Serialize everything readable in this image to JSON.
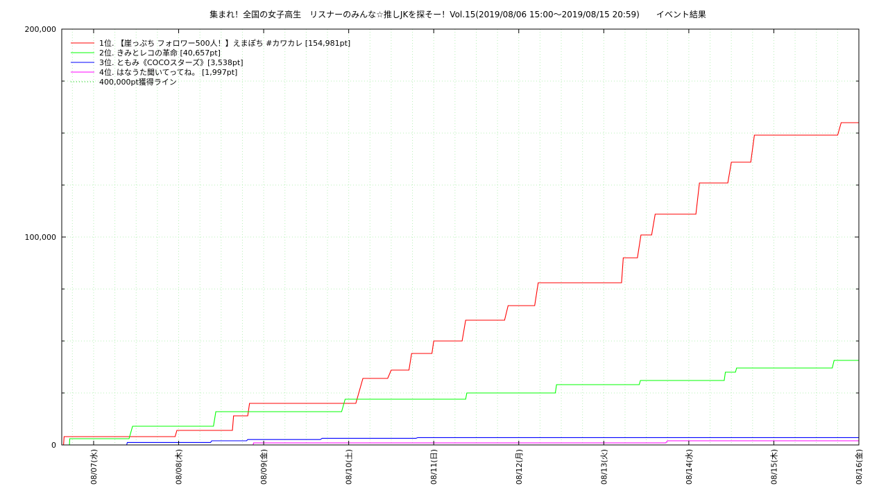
{
  "chart_data": {
    "type": "line",
    "title": "集まれ！全国の女子高生　リスナーのみんな☆推しJKを探そー！Vol.15(2019/08/06 15:00〜2019/08/15 20:59)　　イベント結果",
    "xlabel": "",
    "ylabel": "",
    "x_start": "2019-08-06 15:00",
    "x_end": "2019-08-16 00:00",
    "ylim": [
      0,
      200000
    ],
    "y_ticks": [
      0,
      100000,
      200000
    ],
    "y_tick_labels": [
      "0",
      "100,000",
      "200,000"
    ],
    "x_ticks": [
      "2019-08-07",
      "2019-08-08",
      "2019-08-09",
      "2019-08-10",
      "2019-08-11",
      "2019-08-12",
      "2019-08-13",
      "2019-08-14",
      "2019-08-15",
      "2019-08-16"
    ],
    "x_tick_labels": [
      "08/07(水)",
      "08/08(木)",
      "08/09(金)",
      "08/10(土)",
      "08/11(日)",
      "08/12(月)",
      "08/13(火)",
      "08/14(水)",
      "08/15(木)",
      "08/16(金)"
    ],
    "grid": true,
    "legend_position": "top-left",
    "series": [
      {
        "name": "1位. 【崖っぷち フォロワー500人！】えまぽち #カワカレ [154,981pt]",
        "color": "#ff0000",
        "points": [
          [
            "2019-08-06 15:30",
            0
          ],
          [
            "2019-08-06 15:40",
            4000
          ],
          [
            "2019-08-07 23:00",
            4000
          ],
          [
            "2019-08-07 23:30",
            7000
          ],
          [
            "2019-08-08 15:10",
            7000
          ],
          [
            "2019-08-08 15:30",
            14000
          ],
          [
            "2019-08-08 19:30",
            14000
          ],
          [
            "2019-08-08 20:00",
            20000
          ],
          [
            "2019-08-10 02:00",
            20000
          ],
          [
            "2019-08-10 03:00",
            26000
          ],
          [
            "2019-08-10 04:00",
            32000
          ],
          [
            "2019-08-10 11:00",
            32000
          ],
          [
            "2019-08-10 12:00",
            36000
          ],
          [
            "2019-08-10 17:00",
            36000
          ],
          [
            "2019-08-10 17:45",
            44000
          ],
          [
            "2019-08-10 23:30",
            44000
          ],
          [
            "2019-08-11 00:00",
            50000
          ],
          [
            "2019-08-11 08:00",
            50000
          ],
          [
            "2019-08-11 09:00",
            60000
          ],
          [
            "2019-08-11 20:00",
            60000
          ],
          [
            "2019-08-11 21:00",
            67000
          ],
          [
            "2019-08-12 04:30",
            67000
          ],
          [
            "2019-08-12 05:30",
            78000
          ],
          [
            "2019-08-13 05:00",
            78000
          ],
          [
            "2019-08-13 05:30",
            90000
          ],
          [
            "2019-08-13 09:30",
            90000
          ],
          [
            "2019-08-13 10:30",
            101000
          ],
          [
            "2019-08-13 13:30",
            101000
          ],
          [
            "2019-08-13 14:30",
            111000
          ],
          [
            "2019-08-14 02:00",
            111000
          ],
          [
            "2019-08-14 03:00",
            126000
          ],
          [
            "2019-08-14 11:00",
            126000
          ],
          [
            "2019-08-14 12:00",
            136000
          ],
          [
            "2019-08-14 17:30",
            136000
          ],
          [
            "2019-08-14 18:30",
            149000
          ],
          [
            "2019-08-15 18:00",
            149000
          ],
          [
            "2019-08-15 19:00",
            155000
          ],
          [
            "2019-08-16 00:00",
            155000
          ]
        ]
      },
      {
        "name": "2位. きみとレコの革命 [40,657pt]",
        "color": "#00ff00",
        "points": [
          [
            "2019-08-06 17:10",
            0
          ],
          [
            "2019-08-06 17:15",
            3000
          ],
          [
            "2019-08-07 10:00",
            3000
          ],
          [
            "2019-08-07 11:00",
            9000
          ],
          [
            "2019-08-08 09:50",
            9000
          ],
          [
            "2019-08-08 10:30",
            16000
          ],
          [
            "2019-08-09 22:00",
            16000
          ],
          [
            "2019-08-09 23:00",
            22000
          ],
          [
            "2019-08-11 09:00",
            22000
          ],
          [
            "2019-08-11 09:20",
            25000
          ],
          [
            "2019-08-12 10:20",
            25000
          ],
          [
            "2019-08-12 10:40",
            29000
          ],
          [
            "2019-08-13 10:00",
            29000
          ],
          [
            "2019-08-13 10:20",
            31000
          ],
          [
            "2019-08-14 10:00",
            31000
          ],
          [
            "2019-08-14 10:20",
            35000
          ],
          [
            "2019-08-14 13:10",
            35000
          ],
          [
            "2019-08-14 13:30",
            37000
          ],
          [
            "2019-08-15 16:30",
            37000
          ],
          [
            "2019-08-15 17:00",
            40657
          ],
          [
            "2019-08-16 00:00",
            40657
          ]
        ]
      },
      {
        "name": "3位. ともみ《COCOスターズ》[3,538pt]",
        "color": "#0000ff",
        "points": [
          [
            "2019-08-07 09:20",
            0
          ],
          [
            "2019-08-07 09:30",
            1200
          ],
          [
            "2019-08-08 09:00",
            1200
          ],
          [
            "2019-08-08 09:20",
            2000
          ],
          [
            "2019-08-08 19:10",
            2000
          ],
          [
            "2019-08-08 19:30",
            2600
          ],
          [
            "2019-08-09 16:00",
            2600
          ],
          [
            "2019-08-09 16:30",
            3200
          ],
          [
            "2019-08-10 19:00",
            3200
          ],
          [
            "2019-08-10 19:30",
            3538
          ],
          [
            "2019-08-16 00:00",
            3538
          ]
        ]
      },
      {
        "name": "4位. はなうた聞いてってね。 [1,997pt]",
        "color": "#ff00ff",
        "points": [
          [
            "2019-08-08 21:00",
            0
          ],
          [
            "2019-08-08 21:10",
            1000
          ],
          [
            "2019-08-13 17:30",
            1000
          ],
          [
            "2019-08-13 18:00",
            1997
          ],
          [
            "2019-08-16 00:00",
            1997
          ]
        ]
      },
      {
        "name": "400,000pt獲得ライン",
        "color": "#00cc00",
        "dotted": true,
        "points": []
      }
    ]
  }
}
